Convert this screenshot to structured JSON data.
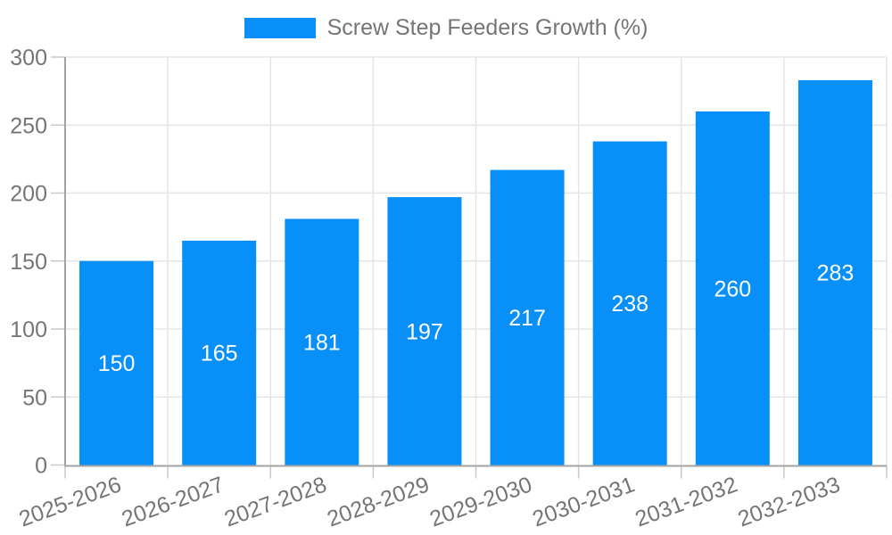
{
  "legend": {
    "label": "Screw Step Feeders Growth (%)"
  },
  "chart_data": {
    "type": "bar",
    "title": "",
    "categories": [
      "2025-2026",
      "2026-2027",
      "2027-2028",
      "2028-2029",
      "2029-2030",
      "2030-2031",
      "2031-2032",
      "2032-2033"
    ],
    "series": [
      {
        "name": "Screw Step Feeders Growth (%)",
        "values": [
          150,
          165,
          181,
          197,
          217,
          238,
          260,
          283
        ]
      }
    ],
    "xlabel": "",
    "ylabel": "",
    "ylim": [
      0,
      300
    ],
    "yticks": [
      0,
      50,
      100,
      150,
      200,
      250,
      300
    ],
    "grid": true,
    "legend_position": "top-center",
    "bar_value_labels_inside": true,
    "x_label_rotation_deg": -20,
    "colors": {
      "bar": "#0990f8",
      "bar_label": "#ffffff",
      "tick_label": "#757575",
      "legend_label": "#757575",
      "grid_line": "#e5e5e5",
      "axis_line": "#a3a3a3",
      "tick_mark": "#c9c9c9",
      "background": "#ffffff"
    }
  }
}
